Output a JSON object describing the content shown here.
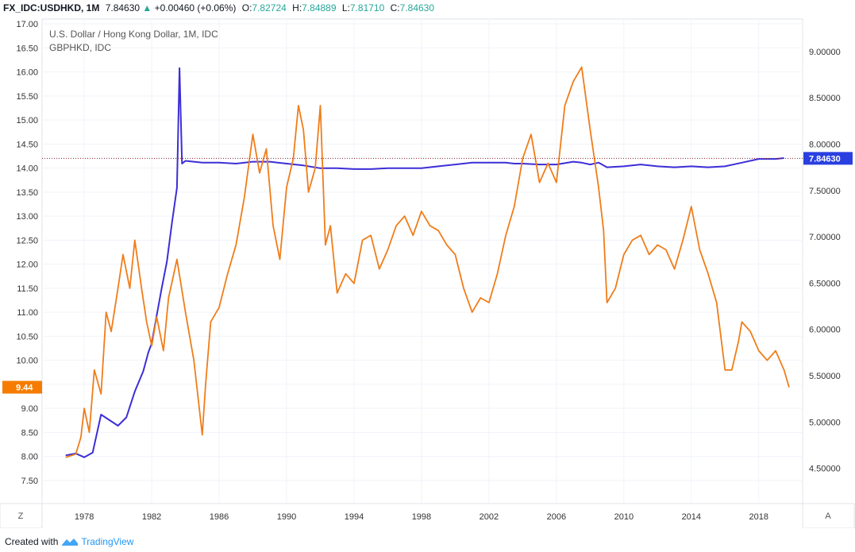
{
  "header": {
    "symbol": "FX_IDC:USDHKD, 1M",
    "last": "7.84630",
    "change": "+0.00460 (+0.06%)",
    "o_label": "O:",
    "o_value": "7.82724",
    "h_label": "H:",
    "h_value": "7.84889",
    "l_label": "L:",
    "l_value": "7.81710",
    "c_label": "C:",
    "c_value": "7.84630"
  },
  "legend": {
    "main_title": "U.S. Dollar / Hong Kong Dollar, 1M, IDC",
    "compare_title": "GBPHKD, IDC"
  },
  "footer": {
    "created_with": "Created with",
    "brand": "TradingView"
  },
  "buttons": {
    "left_axis_mode": "Z",
    "right_axis_mode": "A"
  },
  "colors": {
    "usdhkd": "#3d2ed6",
    "usdhkd_down": "#ef5350",
    "gbphkd": "#f07d1a",
    "last_price_bg": "#2a3fe0",
    "gbp_badge_bg": "#f57c00"
  },
  "chart_data": {
    "type": "line",
    "x_ticks": [
      "1978",
      "1982",
      "1986",
      "1990",
      "1994",
      "1998",
      "2002",
      "2006",
      "2010",
      "2014",
      "2018"
    ],
    "x_range": [
      1975.5,
      2020.6
    ],
    "left_axis": {
      "ticks": [
        "17.00",
        "16.50",
        "16.00",
        "15.50",
        "15.00",
        "14.50",
        "14.00",
        "13.50",
        "13.00",
        "12.50",
        "12.00",
        "11.50",
        "11.00",
        "10.50",
        "10.00",
        "9.50",
        "9.00",
        "8.50",
        "8.00",
        "7.50"
      ],
      "range": [
        7.02,
        17.1
      ],
      "last_value_label": "9.44"
    },
    "right_axis": {
      "ticks": [
        "9.00000",
        "8.50000",
        "8.00000",
        "7.50000",
        "7.00000",
        "6.50000",
        "6.00000",
        "5.50000",
        "5.00000",
        "4.50000"
      ],
      "range": [
        4.12,
        9.35
      ],
      "last_value_label": "7.84630"
    },
    "series": [
      {
        "name": "USDHKD",
        "axis": "right",
        "x": [
          1976.9,
          1977.5,
          1978.0,
          1978.5,
          1979.0,
          1979.5,
          1980.0,
          1980.5,
          1981.0,
          1981.5,
          1981.8,
          1982.0,
          1982.3,
          1982.6,
          1982.9,
          1983.2,
          1983.5,
          1983.65,
          1983.8,
          1984.0,
          1985.0,
          1986.0,
          1987.0,
          1988.0,
          1989.0,
          1990.0,
          1991.0,
          1992.0,
          1993.0,
          1994.0,
          1995.0,
          1996.0,
          1997.0,
          1998.0,
          1999.0,
          2000.0,
          2001.0,
          2002.0,
          2003.0,
          2003.5,
          2004.0,
          2005.0,
          2006.0,
          2007.0,
          2007.5,
          2008.0,
          2008.5,
          2009.0,
          2010.0,
          2011.0,
          2012.0,
          2013.0,
          2014.0,
          2015.0,
          2016.0,
          2017.0,
          2018.0,
          2019.0,
          2019.5
        ],
        "y": [
          4.64,
          4.66,
          4.62,
          4.67,
          5.08,
          5.02,
          4.96,
          5.05,
          5.33,
          5.55,
          5.75,
          5.85,
          6.15,
          6.45,
          6.73,
          7.15,
          7.53,
          8.82,
          7.79,
          7.82,
          7.8,
          7.8,
          7.79,
          7.81,
          7.81,
          7.79,
          7.77,
          7.74,
          7.74,
          7.73,
          7.73,
          7.74,
          7.74,
          7.74,
          7.76,
          7.78,
          7.8,
          7.8,
          7.8,
          7.79,
          7.79,
          7.78,
          7.78,
          7.81,
          7.8,
          7.78,
          7.8,
          7.75,
          7.76,
          7.78,
          7.76,
          7.75,
          7.76,
          7.75,
          7.76,
          7.8,
          7.84,
          7.84,
          7.85
        ]
      },
      {
        "name": "GBPHKD",
        "axis": "left",
        "x": [
          1976.9,
          1977.5,
          1977.8,
          1978.0,
          1978.3,
          1978.6,
          1979.0,
          1979.3,
          1979.6,
          1980.0,
          1980.3,
          1980.7,
          1981.0,
          1981.4,
          1981.7,
          1982.0,
          1982.3,
          1982.7,
          1983.0,
          1983.5,
          1984.0,
          1984.5,
          1985.0,
          1985.2,
          1985.5,
          1986.0,
          1986.5,
          1987.0,
          1987.5,
          1988.0,
          1988.4,
          1988.8,
          1989.2,
          1989.6,
          1990.0,
          1990.4,
          1990.7,
          1991.0,
          1991.3,
          1991.7,
          1992.0,
          1992.3,
          1992.6,
          1993.0,
          1993.5,
          1994.0,
          1994.5,
          1995.0,
          1995.5,
          1996.0,
          1996.5,
          1997.0,
          1997.5,
          1998.0,
          1998.5,
          1999.0,
          1999.5,
          2000.0,
          2000.5,
          2001.0,
          2001.5,
          2002.0,
          2002.5,
          2003.0,
          2003.5,
          2004.0,
          2004.5,
          2005.0,
          2005.5,
          2006.0,
          2006.5,
          2007.0,
          2007.5,
          2008.0,
          2008.5,
          2008.8,
          2009.0,
          2009.5,
          2010.0,
          2010.5,
          2011.0,
          2011.5,
          2012.0,
          2012.5,
          2013.0,
          2013.5,
          2014.0,
          2014.5,
          2015.0,
          2015.5,
          2016.0,
          2016.4,
          2016.8,
          2017.0,
          2017.5,
          2018.0,
          2018.5,
          2019.0,
          2019.5,
          2019.8
        ],
        "y": [
          7.98,
          8.05,
          8.4,
          9.0,
          8.5,
          9.8,
          9.3,
          11.0,
          10.6,
          11.5,
          12.2,
          11.5,
          12.5,
          11.5,
          10.8,
          10.3,
          10.9,
          10.2,
          11.3,
          12.1,
          11.0,
          10.0,
          8.45,
          9.5,
          10.8,
          11.1,
          11.8,
          12.4,
          13.4,
          14.7,
          13.9,
          14.4,
          12.8,
          12.1,
          13.6,
          14.2,
          15.3,
          14.8,
          13.5,
          14.0,
          15.3,
          12.4,
          12.8,
          11.4,
          11.8,
          11.6,
          12.5,
          12.6,
          11.9,
          12.3,
          12.8,
          13.0,
          12.6,
          13.1,
          12.8,
          12.7,
          12.4,
          12.2,
          11.5,
          11.0,
          11.3,
          11.2,
          11.8,
          12.6,
          13.2,
          14.2,
          14.7,
          13.7,
          14.1,
          13.7,
          15.3,
          15.8,
          16.1,
          14.8,
          13.6,
          12.7,
          11.2,
          11.5,
          12.2,
          12.5,
          12.6,
          12.2,
          12.4,
          12.3,
          11.9,
          12.5,
          13.2,
          12.3,
          11.8,
          11.2,
          9.8,
          9.8,
          10.4,
          10.8,
          10.6,
          10.2,
          10.0,
          10.2,
          9.8,
          9.44
        ]
      }
    ]
  }
}
